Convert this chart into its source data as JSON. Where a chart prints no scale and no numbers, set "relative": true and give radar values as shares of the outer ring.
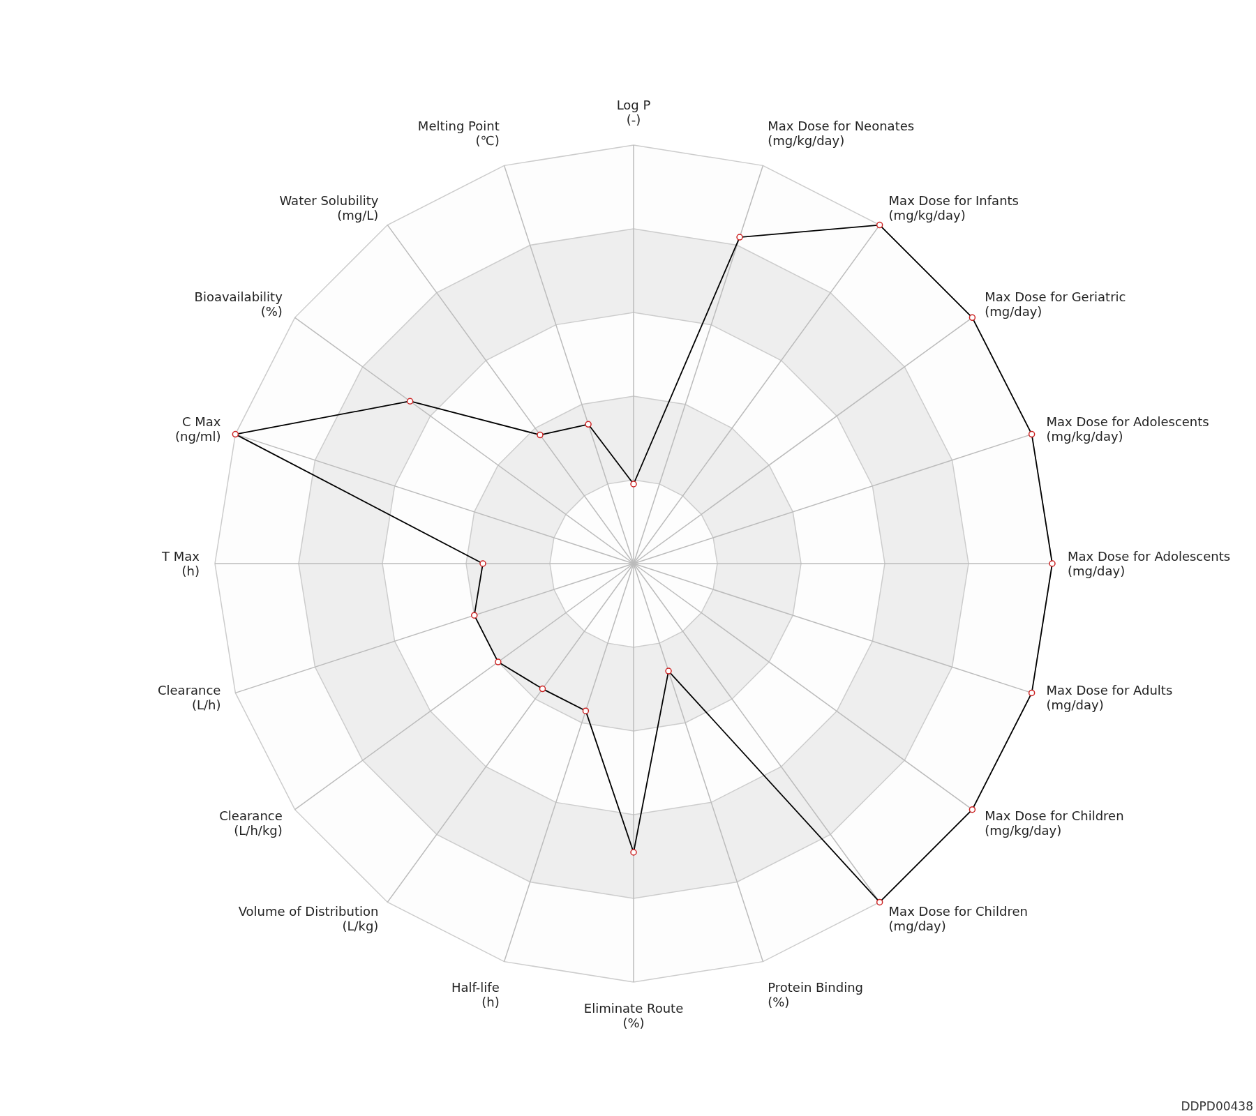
{
  "chart_data": {
    "type": "radar",
    "relative": true,
    "marker": "circle",
    "grid": true,
    "categories": [
      "Log P\n(-)",
      "Max Dose for Neonates\n(mg/kg/day)",
      "Max Dose for Infants\n(mg/kg/day)",
      "Max Dose for Geriatric\n(mg/day)",
      "Max Dose for Adolescents\n(mg/kg/day)",
      "Max Dose for Adolescents\n(mg/day)",
      "Max Dose for Adults\n(mg/day)",
      "Max Dose for Children\n(mg/kg/day)",
      "Max Dose for Children\n(mg/day)",
      "Protein Binding\n(%)",
      "Eliminate Route\n(%)",
      "Half-life\n(h)",
      "Volume of Distribution\n(L/kg)",
      "Clearance\n(L/h/kg)",
      "Clearance\n(L/h)",
      "T Max\n(h)",
      "C Max\n(ng/ml)",
      "Bioavailability\n(%)",
      "Water Solubility\n(mg/L)",
      "Melting Point\n(℃)"
    ],
    "series": [
      {
        "color": "#000000",
        "values": [
          0.19,
          0.82,
          1,
          1,
          1,
          1,
          1,
          1,
          1,
          0.27,
          0.69,
          0.37,
          0.37,
          0.4,
          0.4,
          0.36,
          1,
          0.66,
          0.38,
          0.35
        ]
      }
    ],
    "annotations": [
      "DDPD00438"
    ]
  }
}
